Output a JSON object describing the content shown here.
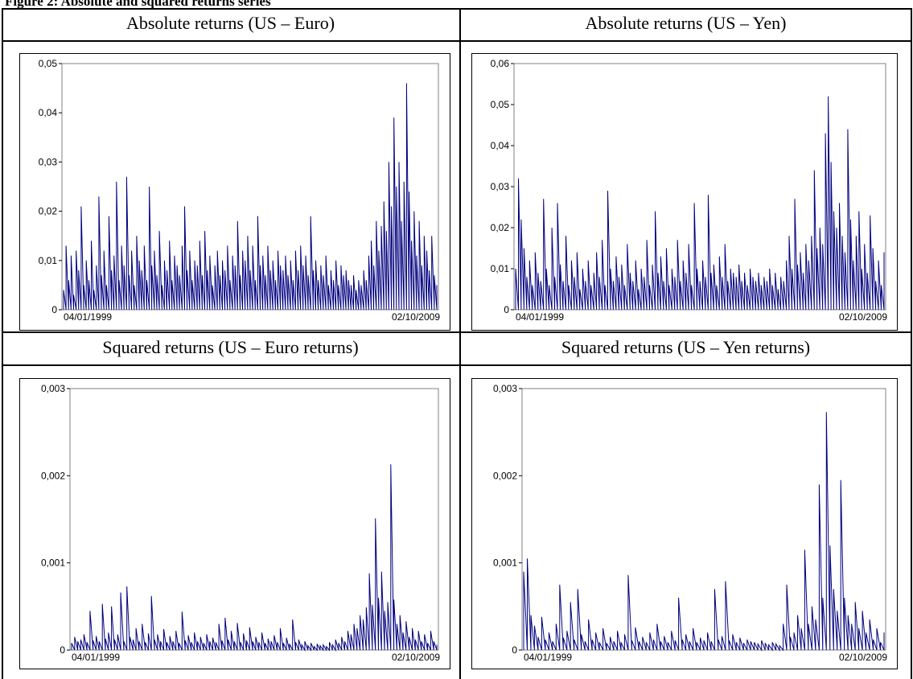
{
  "figure": {
    "caption": "Figure 2: Absolute and squared returns series"
  },
  "colors": {
    "series": "#00007f",
    "frame": "#000000"
  },
  "chart_data": [
    {
      "type": "line",
      "title": "Absolute returns (US – Euro)",
      "xlabel": "",
      "ylabel": "",
      "x_tick_labels": [
        "04/01/1999",
        "02/10/2009"
      ],
      "y_tick_labels": [
        "0",
        "0,01",
        "0,02",
        "0,03",
        "0,04",
        "0,05"
      ],
      "ylim": [
        0,
        0.05
      ],
      "grid": false,
      "series": [
        {
          "values": [
            0.004,
            0.013,
            0.006,
            0.011,
            0.003,
            0.012,
            0.008,
            0.021,
            0.005,
            0.01,
            0.006,
            0.014,
            0.004,
            0.009,
            0.023,
            0.007,
            0.012,
            0.005,
            0.019,
            0.008,
            0.011,
            0.026,
            0.006,
            0.013,
            0.009,
            0.027,
            0.007,
            0.012,
            0.005,
            0.015,
            0.01,
            0.008,
            0.013,
            0.006,
            0.025,
            0.009,
            0.012,
            0.007,
            0.016,
            0.005,
            0.01,
            0.008,
            0.014,
            0.006,
            0.011,
            0.009,
            0.007,
            0.013,
            0.021,
            0.008,
            0.012,
            0.006,
            0.01,
            0.009,
            0.014,
            0.007,
            0.016,
            0.008,
            0.011,
            0.005,
            0.009,
            0.012,
            0.007,
            0.01,
            0.008,
            0.013,
            0.006,
            0.011,
            0.009,
            0.018,
            0.007,
            0.012,
            0.01,
            0.015,
            0.008,
            0.013,
            0.006,
            0.019,
            0.009,
            0.011,
            0.007,
            0.013,
            0.008,
            0.01,
            0.006,
            0.012,
            0.009,
            0.008,
            0.011,
            0.007,
            0.01,
            0.006,
            0.012,
            0.008,
            0.013,
            0.009,
            0.011,
            0.007,
            0.019,
            0.008,
            0.01,
            0.006,
            0.009,
            0.007,
            0.011,
            0.005,
            0.008,
            0.006,
            0.01,
            0.005,
            0.009,
            0.007,
            0.008,
            0.006,
            0.005,
            0.007,
            0.004,
            0.006,
            0.005,
            0.008,
            0.006,
            0.011,
            0.014,
            0.009,
            0.018,
            0.012,
            0.017,
            0.022,
            0.016,
            0.03,
            0.021,
            0.039,
            0.025,
            0.03,
            0.018,
            0.026,
            0.046,
            0.024,
            0.014,
            0.02,
            0.011,
            0.018,
            0.009,
            0.015,
            0.012,
            0.008,
            0.015,
            0.007,
            0.005
          ]
        }
      ]
    },
    {
      "type": "line",
      "title": "Absolute returns (US – Yen)",
      "xlabel": "",
      "ylabel": "",
      "x_tick_labels": [
        "04/01/1999",
        "02/10/2009"
      ],
      "y_tick_labels": [
        "0",
        "0,01",
        "0,02",
        "0,03",
        "0,04",
        "0,05",
        "0,06"
      ],
      "ylim": [
        0,
        0.06
      ],
      "grid": false,
      "series": [
        {
          "values": [
            0.01,
            0.032,
            0.022,
            0.015,
            0.008,
            0.012,
            0.006,
            0.014,
            0.009,
            0.007,
            0.027,
            0.01,
            0.006,
            0.02,
            0.008,
            0.026,
            0.011,
            0.007,
            0.018,
            0.006,
            0.012,
            0.008,
            0.014,
            0.005,
            0.01,
            0.007,
            0.012,
            0.006,
            0.009,
            0.014,
            0.008,
            0.017,
            0.006,
            0.029,
            0.01,
            0.007,
            0.013,
            0.008,
            0.011,
            0.006,
            0.016,
            0.009,
            0.007,
            0.012,
            0.005,
            0.01,
            0.008,
            0.017,
            0.006,
            0.011,
            0.024,
            0.009,
            0.013,
            0.007,
            0.015,
            0.006,
            0.01,
            0.008,
            0.017,
            0.007,
            0.012,
            0.009,
            0.016,
            0.006,
            0.026,
            0.01,
            0.007,
            0.012,
            0.008,
            0.028,
            0.009,
            0.011,
            0.006,
            0.013,
            0.008,
            0.016,
            0.007,
            0.01,
            0.009,
            0.008,
            0.011,
            0.007,
            0.009,
            0.006,
            0.01,
            0.008,
            0.007,
            0.009,
            0.006,
            0.008,
            0.007,
            0.01,
            0.006,
            0.009,
            0.005,
            0.008,
            0.007,
            0.012,
            0.018,
            0.01,
            0.027,
            0.011,
            0.014,
            0.009,
            0.016,
            0.012,
            0.018,
            0.034,
            0.015,
            0.02,
            0.016,
            0.043,
            0.052,
            0.036,
            0.024,
            0.02,
            0.026,
            0.018,
            0.014,
            0.044,
            0.022,
            0.012,
            0.018,
            0.024,
            0.01,
            0.016,
            0.009,
            0.023,
            0.015,
            0.007,
            0.012,
            0.006,
            0.014
          ]
        }
      ]
    },
    {
      "type": "line",
      "title": "Squared returns (US – Euro returns)",
      "xlabel": "",
      "ylabel": "",
      "x_tick_labels": [
        "04/01/1999",
        "02/10/2009"
      ],
      "y_tick_labels": [
        "0",
        "0,001",
        "0,002",
        "0,003"
      ],
      "ylim": [
        0,
        0.003
      ],
      "grid": false,
      "series": [
        {
          "values": [
            8e-05,
            0.00015,
            0.0001,
            0.00012,
            0.00018,
            9e-05,
            0.00045,
            0.00011,
            0.00016,
            0.0001,
            0.00053,
            0.00013,
            0.0002,
            0.0005,
            0.00012,
            0.00018,
            0.00066,
            0.0001,
            0.00073,
            0.00015,
            0.00012,
            0.00025,
            0.0001,
            0.0003,
            9e-05,
            0.00019,
            0.00062,
            0.00012,
            0.00018,
            0.0001,
            0.00024,
            9e-05,
            0.00016,
            0.0001,
            0.00022,
            8e-05,
            0.00044,
            0.00011,
            0.00017,
            9e-05,
            0.0002,
            0.0001,
            0.00015,
            8e-05,
            0.00018,
            0.0001,
            0.00014,
            9e-05,
            0.0003,
            0.00011,
            0.00037,
            0.00012,
            0.00022,
            0.0001,
            0.00031,
            9e-05,
            0.00019,
            0.00011,
            0.00026,
            0.0001,
            0.00015,
            9e-05,
            0.0002,
            8e-05,
            0.00013,
            0.0001,
            0.00017,
            9e-05,
            0.00025,
            8e-05,
            0.00014,
            7e-05,
            0.00035,
            9e-05,
            0.00012,
            6e-05,
            0.0001,
            5e-05,
            8e-05,
            4e-05,
            7e-05,
            5e-05,
            6e-05,
            4e-05,
            9e-05,
            6e-05,
            0.00012,
            8e-05,
            0.00015,
            0.0001,
            0.00022,
            0.00018,
            0.0003,
            0.00025,
            0.0004,
            0.00035,
            0.00049,
            0.00088,
            0.00052,
            0.00151,
            0.0006,
            0.0009,
            0.00045,
            0.00055,
            0.00213,
            0.00058,
            0.0003,
            0.0004,
            0.0002,
            0.00033,
            0.00015,
            0.00025,
            0.00012,
            0.00022,
            0.0001,
            0.00018,
            8e-05,
            0.00022,
            0.0001,
            6e-05
          ]
        }
      ]
    },
    {
      "type": "line",
      "title": "Squared returns (US – Yen returns)",
      "xlabel": "",
      "ylabel": "",
      "x_tick_labels": [
        "04/01/1999",
        "02/10/2009"
      ],
      "y_tick_labels": [
        "0",
        "0,001",
        "0,002",
        "0,003"
      ],
      "ylim": [
        0,
        0.003
      ],
      "grid": false,
      "series": [
        {
          "values": [
            0.0009,
            0.00105,
            0.0004,
            0.00028,
            0.00015,
            0.00038,
            0.00012,
            0.0002,
            0.0001,
            0.0003,
            0.00075,
            0.00014,
            0.00022,
            0.00055,
            0.00012,
            0.0007,
            0.00018,
            0.0001,
            0.00035,
            0.00012,
            0.0002,
            9e-05,
            0.00025,
            8e-05,
            0.00015,
            0.0001,
            0.00022,
            9e-05,
            0.00018,
            0.00086,
            0.00011,
            0.00026,
            0.0001,
            0.00015,
            9e-05,
            0.0002,
            0.00012,
            0.0003,
            0.0001,
            0.00016,
            9e-05,
            0.00022,
            0.00011,
            0.0006,
            0.00012,
            0.00018,
            0.0001,
            0.00025,
            9e-05,
            0.00014,
            0.00011,
            0.0002,
            0.0001,
            0.0007,
            0.00012,
            0.00016,
            0.00079,
            0.00011,
            0.00018,
            9e-05,
            0.00014,
            8e-05,
            0.00012,
            0.0001,
            9e-05,
            7e-05,
            0.00011,
            8e-05,
            6e-05,
            9e-05,
            7e-05,
            5e-05,
            0.0003,
            0.00075,
            0.00015,
            0.0002,
            0.0004,
            0.00025,
            0.00115,
            0.0003,
            0.0005,
            0.00035,
            0.0019,
            0.0006,
            0.00273,
            0.0012,
            0.0007,
            0.00045,
            0.00195,
            0.0006,
            0.0004,
            0.0003,
            0.00055,
            0.00025,
            0.00045,
            0.0002,
            0.00035,
            0.00012,
            0.00025,
            9e-05,
            0.0002
          ]
        }
      ]
    }
  ]
}
